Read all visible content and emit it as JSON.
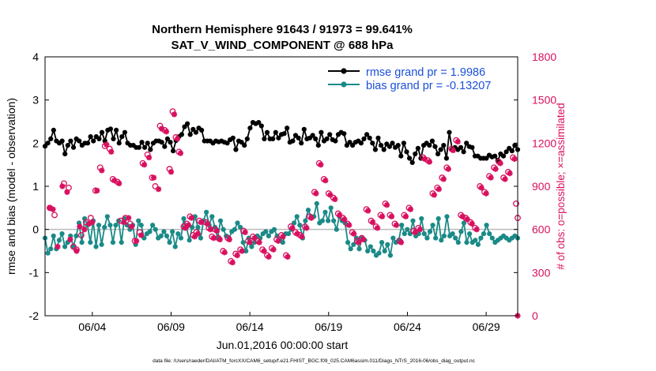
{
  "chart_data": {
    "type": "line",
    "title_line1": "Northern Hemisphere 91643 / 91973 = 99.641%",
    "title_line2": "SAT_V_WIND_COMPONENT @ 688 hPa",
    "ylabel_left": "rmse and bias (model - observation)",
    "ylabel_right": "# of obs: o=possible; ×=assimilated",
    "xlabel": "Jun.01,2016 00:00:00 start",
    "footnote": "data file: /Users/raeder/DAI/ATM_forcXX/CAM6_setup/f.e21.FHIST_BGC.f09_025.CAM6assim.011/Diags_NTrS_2016-06/obs_diag_output.nc",
    "left_axis": {
      "ylim": [
        -2,
        4
      ],
      "ticks": [
        "-2",
        "-1",
        "0",
        "1",
        "2",
        "3",
        "4"
      ]
    },
    "right_axis": {
      "ylim": [
        0,
        1800
      ],
      "ticks": [
        "0",
        "300",
        "600",
        "900",
        "1200",
        "1500",
        "1800"
      ]
    },
    "x_axis": {
      "start_day": 1,
      "end_day": 31,
      "ticks": [
        {
          "day": 4,
          "label": "06/04"
        },
        {
          "day": 9,
          "label": "06/09"
        },
        {
          "day": 14,
          "label": "06/14"
        },
        {
          "day": 19,
          "label": "06/19"
        },
        {
          "day": 24,
          "label": "06/24"
        },
        {
          "day": 29,
          "label": "06/29"
        }
      ]
    },
    "legend": [
      {
        "name": "rmse",
        "label": "rmse grand pr = 1.9986",
        "color": "#000000"
      },
      {
        "name": "bias",
        "label": "bias grand pr = -0.13207",
        "color": "#1a8a87"
      }
    ],
    "colors": {
      "rmse": "#000000",
      "bias": "#1a8a87",
      "obs": "#d9105f",
      "zero_line": "#bbbbbb",
      "legend_text": "#1a4fd8"
    },
    "series": {
      "rmse": [
        1.93,
        2.0,
        2.1,
        2.3,
        2.05,
        2.0,
        2.05,
        1.75,
        1.95,
        2.05,
        1.9,
        2.1,
        2.05,
        1.95,
        2.0,
        2.0,
        2.15,
        2.05,
        2.15,
        2.1,
        2.25,
        2.05,
        2.3,
        2.33,
        2.1,
        2.3,
        2.0,
        2.15,
        2.25,
        2.0,
        1.95,
        1.95,
        1.9,
        1.9,
        2.02,
        1.9,
        2.0,
        1.85,
        2.0,
        2.05,
        2.05,
        2.02,
        1.92,
        2.1,
        2.02,
        1.82,
        2.06,
        2.15,
        2.2,
        2.38,
        2.45,
        2.2,
        2.32,
        2.25,
        2.35,
        2.3,
        2.05,
        2.05,
        2.05,
        2.0,
        2.05,
        2.03,
        2.05,
        2.02,
        2.0,
        2.08,
        2.12,
        1.85,
        2.05,
        2.02,
        1.95,
        2.1,
        2.35,
        2.48,
        2.45,
        2.48,
        2.4,
        2.1,
        2.25,
        2.1,
        2.1,
        2.25,
        2.12,
        2.2,
        2.22,
        2.35,
        2.02,
        2.05,
        2.18,
        2.12,
        2.0,
        2.32,
        2.1,
        2.12,
        2.18,
        2.1,
        1.95,
        2.25,
        2.05,
        2.1,
        2.2,
        2.08,
        2.05,
        2.2,
        2.25,
        2.22,
        1.95,
        2.02,
        1.95,
        2.02,
        2.05,
        2.0,
        2.1,
        2.2,
        2.12,
        2.0,
        1.85,
        2.12,
        1.95,
        1.85,
        1.98,
        1.92,
        2.0,
        1.9,
        1.95,
        1.7,
        2.0,
        1.8,
        1.65,
        1.55,
        1.75,
        1.88,
        1.65,
        1.95,
        2.0,
        1.95,
        2.05,
        1.92,
        1.75,
        1.85,
        1.95,
        1.65,
        2.25,
        1.85,
        1.9,
        1.85,
        1.9,
        1.8,
        2.0,
        1.92,
        1.9,
        1.7,
        1.7,
        1.65,
        1.65,
        1.65,
        1.72,
        1.68,
        1.7,
        1.6,
        1.75,
        1.7,
        1.8,
        1.88,
        1.82,
        1.95,
        1.85
      ],
      "bias": [
        -0.2,
        -0.55,
        -0.45,
        -0.15,
        -0.45,
        -0.25,
        -0.1,
        -0.4,
        -0.3,
        -0.15,
        -0.4,
        -0.15,
        0.15,
        -0.3,
        0.25,
        0.1,
        -0.3,
        0.2,
        -0.4,
        0.1,
        -0.35,
        0.05,
        0.3,
        0.1,
        -0.3,
        0.1,
        0.2,
        -0.3,
        0.25,
        0.1,
        0.0,
        0.1,
        -0.35,
        0.2,
        0.1,
        -0.2,
        -0.1,
        -0.05,
        0.1,
        0.0,
        -0.2,
        -0.15,
        -0.05,
        -0.15,
        -0.3,
        -0.05,
        -0.4,
        -0.1,
        -0.2,
        0.25,
        0.05,
        -0.25,
        0.05,
        0.3,
        0.05,
        -0.2,
        0.2,
        0.4,
        0.1,
        0.3,
        0.05,
        -0.2,
        0.2,
        0.0,
        -0.15,
        -0.2,
        -0.05,
        0.0,
        0.15,
        0.05,
        -0.3,
        -0.5,
        -0.2,
        -0.4,
        -0.3,
        -0.15,
        -0.2,
        -0.1,
        -0.05,
        -0.15,
        -0.05,
        0.0,
        -0.15,
        -0.25,
        -0.3,
        -0.1,
        -0.1,
        0.0,
        0.15,
        0.3,
        0.1,
        -0.2,
        0.2,
        0.45,
        0.3,
        0.3,
        0.6,
        0.15,
        0.2,
        0.4,
        0.2,
        0.5,
        0.2,
        0.0,
        0.3,
        0.2,
        0.15,
        -0.3,
        -0.45,
        -0.35,
        -0.2,
        -0.45,
        -0.2,
        -0.25,
        -0.5,
        -0.4,
        -0.5,
        -0.6,
        -0.55,
        -0.3,
        -0.5,
        -0.35,
        -0.6,
        -0.2,
        -0.3,
        -0.25,
        0.1,
        -0.1,
        0.0,
        -0.1,
        0.2,
        -0.15,
        -0.1,
        0.25,
        -0.1,
        -0.2,
        -0.05,
        0.1,
        -0.2,
        0.25,
        -0.25,
        -0.15,
        0.3,
        -0.15,
        -0.1,
        -0.2,
        -0.3,
        -0.05,
        0.15,
        -0.3,
        -0.1,
        -0.3,
        -0.25,
        -0.35,
        -0.2,
        -0.1,
        0.1,
        -0.1,
        -0.2,
        -0.3,
        -0.25,
        -0.2,
        -0.15,
        -0.2,
        -0.25,
        -0.2,
        -0.15,
        -0.2
      ],
      "obs_possible": [
        [
          1.3,
          750
        ],
        [
          1.6,
          700
        ],
        [
          2.2,
          920
        ],
        [
          2.5,
          890
        ],
        [
          2.8,
          480
        ],
        [
          3.0,
          460
        ],
        [
          3.3,
          560
        ],
        [
          3.6,
          650
        ],
        [
          3.9,
          680
        ],
        [
          4.2,
          870
        ],
        [
          4.5,
          1030
        ],
        [
          4.8,
          1180
        ],
        [
          5.1,
          1160
        ],
        [
          5.3,
          950
        ],
        [
          5.6,
          930
        ],
        [
          5.8,
          660
        ],
        [
          6.1,
          680
        ],
        [
          6.4,
          640
        ],
        [
          6.7,
          520
        ],
        [
          7.0,
          580
        ],
        [
          7.2,
          1060
        ],
        [
          7.5,
          1120
        ],
        [
          7.8,
          960
        ],
        [
          8.0,
          900
        ],
        [
          8.3,
          1320
        ],
        [
          8.6,
          1290
        ],
        [
          8.9,
          1020
        ],
        [
          9.1,
          1420
        ],
        [
          9.3,
          1240
        ],
        [
          9.5,
          1140
        ],
        [
          9.8,
          620
        ],
        [
          10.0,
          640
        ],
        [
          10.2,
          690
        ],
        [
          10.4,
          560
        ],
        [
          10.6,
          580
        ],
        [
          10.8,
          660
        ],
        [
          11.2,
          650
        ],
        [
          11.4,
          610
        ],
        [
          11.6,
          550
        ],
        [
          11.8,
          600
        ],
        [
          12.0,
          540
        ],
        [
          12.3,
          450
        ],
        [
          12.6,
          540
        ],
        [
          12.8,
          380
        ],
        [
          13.1,
          430
        ],
        [
          13.4,
          460
        ],
        [
          13.6,
          590
        ],
        [
          13.9,
          520
        ],
        [
          14.2,
          550
        ],
        [
          14.5,
          520
        ],
        [
          14.8,
          460
        ],
        [
          15.1,
          420
        ],
        [
          15.4,
          470
        ],
        [
          15.7,
          530
        ],
        [
          16.0,
          560
        ],
        [
          16.3,
          420
        ],
        [
          16.6,
          620
        ],
        [
          16.9,
          580
        ],
        [
          17.2,
          560
        ],
        [
          17.5,
          620
        ],
        [
          17.8,
          690
        ],
        [
          18.1,
          860
        ],
        [
          18.4,
          1060
        ],
        [
          18.7,
          950
        ],
        [
          19.0,
          850
        ],
        [
          19.3,
          820
        ],
        [
          19.6,
          710
        ],
        [
          19.9,
          680
        ],
        [
          20.2,
          640
        ],
        [
          20.5,
          580
        ],
        [
          20.8,
          520
        ],
        [
          21.1,
          540
        ],
        [
          21.4,
          740
        ],
        [
          21.7,
          660
        ],
        [
          22.0,
          620
        ],
        [
          22.3,
          700
        ],
        [
          22.6,
          780
        ],
        [
          22.9,
          700
        ],
        [
          23.2,
          640
        ],
        [
          23.5,
          520
        ],
        [
          23.8,
          700
        ],
        [
          24.1,
          750
        ],
        [
          24.4,
          590
        ],
        [
          24.7,
          610
        ],
        [
          25.0,
          1100
        ],
        [
          25.3,
          1080
        ],
        [
          25.6,
          850
        ],
        [
          25.9,
          890
        ],
        [
          26.2,
          960
        ],
        [
          26.5,
          1030
        ],
        [
          26.8,
          1160
        ],
        [
          27.1,
          1220
        ],
        [
          27.4,
          700
        ],
        [
          27.7,
          680
        ],
        [
          28.0,
          650
        ],
        [
          28.3,
          610
        ],
        [
          28.6,
          900
        ],
        [
          28.9,
          860
        ],
        [
          29.2,
          970
        ],
        [
          29.5,
          1030
        ],
        [
          29.8,
          1070
        ],
        [
          30.1,
          960
        ],
        [
          30.4,
          1000
        ],
        [
          30.7,
          1100
        ],
        [
          30.9,
          780
        ],
        [
          31.0,
          680
        ]
      ],
      "obs_assimilated": [
        [
          1.3,
          750
        ],
        [
          1.5,
          740
        ],
        [
          1.8,
          480
        ],
        [
          2.1,
          900
        ],
        [
          2.4,
          860
        ],
        [
          2.6,
          530
        ],
        [
          3.0,
          450
        ],
        [
          3.2,
          620
        ],
        [
          3.5,
          600
        ],
        [
          3.8,
          640
        ],
        [
          4.0,
          650
        ],
        [
          4.3,
          870
        ],
        [
          4.6,
          1010
        ],
        [
          4.9,
          1190
        ],
        [
          5.2,
          1140
        ],
        [
          5.4,
          940
        ],
        [
          5.7,
          920
        ],
        [
          6.0,
          650
        ],
        [
          6.3,
          680
        ],
        [
          6.5,
          620
        ],
        [
          6.8,
          520
        ],
        [
          7.1,
          560
        ],
        [
          7.3,
          1050
        ],
        [
          7.6,
          1100
        ],
        [
          7.9,
          960
        ],
        [
          8.2,
          880
        ],
        [
          8.4,
          1300
        ],
        [
          8.7,
          1280
        ],
        [
          9.0,
          1000
        ],
        [
          9.2,
          1400
        ],
        [
          9.4,
          1230
        ],
        [
          9.6,
          1130
        ],
        [
          9.9,
          610
        ],
        [
          10.1,
          630
        ],
        [
          10.3,
          680
        ],
        [
          10.5,
          550
        ],
        [
          10.7,
          570
        ],
        [
          10.9,
          650
        ],
        [
          11.3,
          640
        ],
        [
          11.5,
          600
        ],
        [
          11.7,
          540
        ],
        [
          11.9,
          590
        ],
        [
          12.1,
          530
        ],
        [
          12.4,
          440
        ],
        [
          12.7,
          530
        ],
        [
          12.9,
          370
        ],
        [
          13.2,
          420
        ],
        [
          13.5,
          450
        ],
        [
          13.7,
          580
        ],
        [
          14.0,
          510
        ],
        [
          14.3,
          540
        ],
        [
          14.6,
          510
        ],
        [
          14.9,
          450
        ],
        [
          15.2,
          410
        ],
        [
          15.5,
          460
        ],
        [
          15.8,
          520
        ],
        [
          16.1,
          550
        ],
        [
          16.4,
          410
        ],
        [
          16.7,
          610
        ],
        [
          17.0,
          570
        ],
        [
          17.3,
          550
        ],
        [
          17.6,
          610
        ],
        [
          17.9,
          680
        ],
        [
          18.2,
          850
        ],
        [
          18.5,
          1050
        ],
        [
          18.8,
          940
        ],
        [
          19.1,
          840
        ],
        [
          19.4,
          810
        ],
        [
          19.7,
          700
        ],
        [
          20.0,
          670
        ],
        [
          20.3,
          630
        ],
        [
          20.6,
          570
        ],
        [
          20.9,
          510
        ],
        [
          21.2,
          530
        ],
        [
          21.5,
          730
        ],
        [
          21.8,
          650
        ],
        [
          22.1,
          610
        ],
        [
          22.4,
          690
        ],
        [
          22.7,
          770
        ],
        [
          23.0,
          690
        ],
        [
          23.3,
          630
        ],
        [
          23.6,
          510
        ],
        [
          23.9,
          690
        ],
        [
          24.2,
          740
        ],
        [
          24.5,
          580
        ],
        [
          24.8,
          600
        ],
        [
          25.1,
          1090
        ],
        [
          25.4,
          1070
        ],
        [
          25.7,
          840
        ],
        [
          26.0,
          880
        ],
        [
          26.3,
          950
        ],
        [
          26.6,
          1020
        ],
        [
          26.9,
          1150
        ],
        [
          27.2,
          1210
        ],
        [
          27.5,
          690
        ],
        [
          27.8,
          670
        ],
        [
          28.1,
          640
        ],
        [
          28.4,
          600
        ],
        [
          28.7,
          890
        ],
        [
          29.0,
          850
        ],
        [
          29.3,
          960
        ],
        [
          29.6,
          1020
        ],
        [
          29.9,
          1060
        ],
        [
          30.2,
          950
        ],
        [
          30.5,
          990
        ],
        [
          30.8,
          1090
        ],
        [
          31.0,
          0
        ]
      ]
    }
  }
}
